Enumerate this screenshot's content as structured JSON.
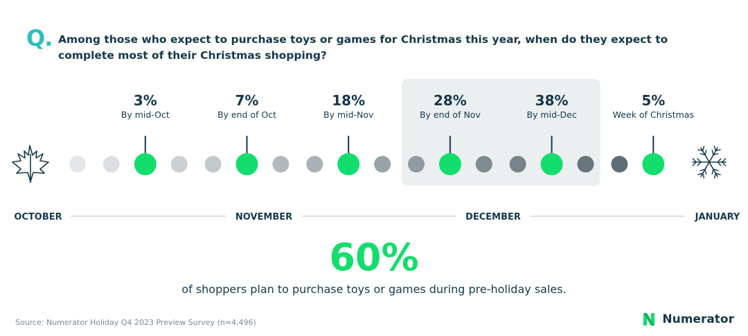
{
  "question": {
    "mark": "Q.",
    "text": "Among those who expect to purchase toys or games for Christmas this year, when do they expect to complete most of their Christmas shopping?"
  },
  "chart_data": {
    "type": "timeline",
    "title": "",
    "unit": "%",
    "points": [
      {
        "label": "By mid-Oct",
        "value": 3,
        "value_label": "3%",
        "dot_index": 2
      },
      {
        "label": "By end of Oct",
        "value": 7,
        "value_label": "7%",
        "dot_index": 5
      },
      {
        "label": "By mid-Nov",
        "value": 18,
        "value_label": "18%",
        "dot_index": 8
      },
      {
        "label": "By end of Nov",
        "value": 28,
        "value_label": "28%",
        "dot_index": 11,
        "highlighted": true
      },
      {
        "label": "By mid-Dec",
        "value": 38,
        "value_label": "38%",
        "dot_index": 14,
        "highlighted": true
      },
      {
        "label": "Week of Christmas",
        "value": 5,
        "value_label": "5%",
        "dot_index": 17
      }
    ],
    "dot_count": 18,
    "months": [
      "OCTOBER",
      "NOVEMBER",
      "DECEMBER",
      "JANUARY"
    ],
    "highlight_range": [
      "By end of Nov",
      "By mid-Dec"
    ],
    "colors": {
      "accent": "#13dd6c",
      "text": "#17384a",
      "highlight_bg": "#eceff0",
      "dot_gradient": [
        "#e3e7e9",
        "#56666e"
      ]
    }
  },
  "summary": {
    "stat": "60%",
    "text": "of shoppers plan to purchase toys or games during pre-holiday sales."
  },
  "footer": {
    "source": "Source: Numerator Holiday Q4 2023 Preview Survey (n=4,496)",
    "brand": "Numerator"
  },
  "icons": {
    "start": "maple-leaf-icon",
    "end": "snowflake-icon",
    "brand": "numerator-logo-icon"
  }
}
